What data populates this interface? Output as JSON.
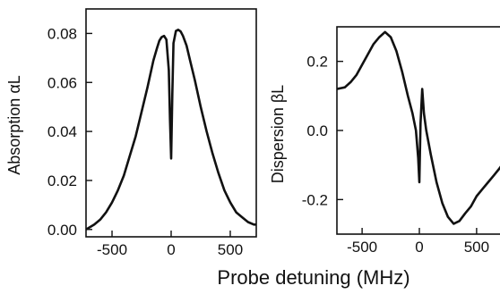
{
  "x_title": "Probe detuning (MHz)",
  "chart_data": [
    {
      "type": "line",
      "ylabel": "Absorption αL",
      "xlim": [
        -720,
        720
      ],
      "ylim": [
        -0.003,
        0.09
      ],
      "xticks": [
        -500,
        0,
        500
      ],
      "xtick_labels": [
        "-500",
        "0",
        "500"
      ],
      "yticks": [
        0.0,
        0.02,
        0.04,
        0.06,
        0.08
      ],
      "ytick_labels": [
        "0.00",
        "0.02",
        "0.04",
        "0.06",
        "0.08"
      ],
      "grid": false,
      "series": [
        {
          "x": [
            -720,
            -650,
            -600,
            -550,
            -500,
            -450,
            -400,
            -350,
            -300,
            -250,
            -200,
            -150,
            -120,
            -100,
            -80,
            -60,
            -40,
            -20,
            -10,
            0,
            10,
            20,
            40,
            60,
            80,
            100,
            130,
            160,
            200,
            250,
            300,
            350,
            400,
            450,
            500,
            550,
            600,
            650,
            700,
            720
          ],
          "y": [
            0.0,
            0.002,
            0.004,
            0.007,
            0.011,
            0.016,
            0.022,
            0.03,
            0.038,
            0.048,
            0.058,
            0.069,
            0.074,
            0.077,
            0.0785,
            0.079,
            0.0775,
            0.065,
            0.045,
            0.029,
            0.055,
            0.076,
            0.081,
            0.0815,
            0.0808,
            0.079,
            0.075,
            0.069,
            0.061,
            0.05,
            0.04,
            0.031,
            0.023,
            0.016,
            0.011,
            0.007,
            0.005,
            0.003,
            0.002,
            0.002
          ]
        }
      ]
    },
    {
      "type": "line",
      "ylabel": "Dispersion βL",
      "xlim": [
        -720,
        720
      ],
      "ylim": [
        -0.3,
        0.3
      ],
      "xticks": [
        -500,
        0,
        500
      ],
      "xtick_labels": [
        "-500",
        "0",
        "500"
      ],
      "yticks": [
        -0.2,
        0.0,
        0.2
      ],
      "ytick_labels": [
        "-0.2",
        "0.0",
        "0.2"
      ],
      "grid": false,
      "series": [
        {
          "x": [
            -720,
            -650,
            -600,
            -550,
            -500,
            -450,
            -400,
            -350,
            -300,
            -250,
            -200,
            -150,
            -100,
            -60,
            -30,
            -10,
            0,
            10,
            25,
            40,
            60,
            100,
            150,
            200,
            250,
            300,
            350,
            400,
            450,
            500,
            550,
            600,
            650,
            700,
            720
          ],
          "y": [
            0.12,
            0.125,
            0.14,
            0.16,
            0.19,
            0.22,
            0.25,
            0.27,
            0.285,
            0.27,
            0.23,
            0.17,
            0.1,
            0.05,
            0.0,
            -0.08,
            -0.15,
            0.02,
            0.12,
            0.05,
            0.0,
            -0.07,
            -0.15,
            -0.21,
            -0.25,
            -0.27,
            -0.262,
            -0.24,
            -0.22,
            -0.19,
            -0.17,
            -0.15,
            -0.13,
            -0.11,
            -0.1
          ]
        }
      ]
    }
  ]
}
